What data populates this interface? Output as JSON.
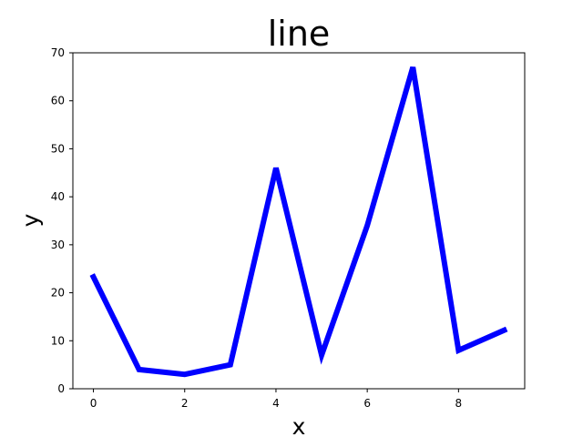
{
  "chart_data": {
    "type": "line",
    "title": "line",
    "xlabel": "x",
    "ylabel": "y",
    "x": [
      0,
      1,
      2,
      3,
      4,
      5,
      6,
      7,
      8,
      9
    ],
    "series": [
      {
        "values": [
          23.3,
          4,
          3,
          5,
          46,
          7,
          34,
          67,
          8,
          12.2
        ],
        "color": "#0000ff"
      }
    ],
    "xlim": [
      -0.45,
      9.45
    ],
    "ylim": [
      0,
      70
    ],
    "xticks": [
      "0",
      "2",
      "4",
      "6",
      "8"
    ],
    "yticks": [
      "0",
      "10",
      "20",
      "30",
      "40",
      "50",
      "60",
      "70"
    ],
    "grid": false,
    "legend": "none"
  }
}
